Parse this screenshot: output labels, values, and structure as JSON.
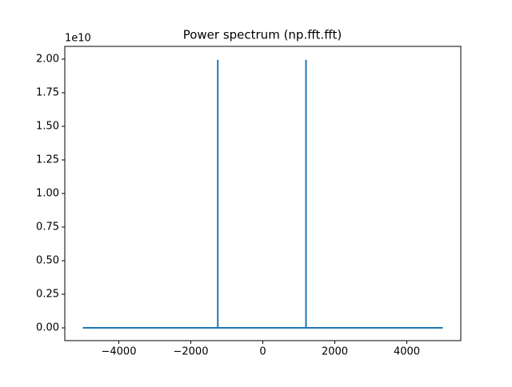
{
  "chart_data": {
    "type": "line",
    "title": "Power spectrum (np.fft.fft)",
    "y_offset_label": "1e10",
    "x": [
      -5000,
      -3000,
      -1250,
      -1250,
      -1250,
      0,
      1200,
      1200,
      1200,
      3000,
      5000
    ],
    "series": [
      {
        "color": "#1f77b4",
        "values": [
          0.0,
          0.0,
          0.0,
          1.99,
          0.0,
          0.0,
          0.0,
          1.99,
          0.0,
          0.0,
          0.0
        ]
      }
    ],
    "xlim": [
      -5500,
      5500
    ],
    "xticks": [
      {
        "value": -4000,
        "label": "−4000"
      },
      {
        "value": -2000,
        "label": "−2000"
      },
      0,
      2000,
      4000
    ],
    "ylim": [
      -0.095,
      2.095
    ],
    "yticks": [
      {
        "value": 0,
        "label": "0.00"
      },
      {
        "value": 0.25,
        "label": "0.25"
      },
      {
        "value": 0.5,
        "label": "0.50"
      },
      {
        "value": 0.75,
        "label": "0.75"
      },
      {
        "value": 1.0,
        "label": "1.00"
      },
      {
        "value": 1.25,
        "label": "1.25"
      },
      {
        "value": 1.5,
        "label": "1.50"
      },
      {
        "value": 1.75,
        "label": "1.75"
      },
      {
        "value": 2.0,
        "label": "2.00"
      }
    ],
    "grid": false
  }
}
